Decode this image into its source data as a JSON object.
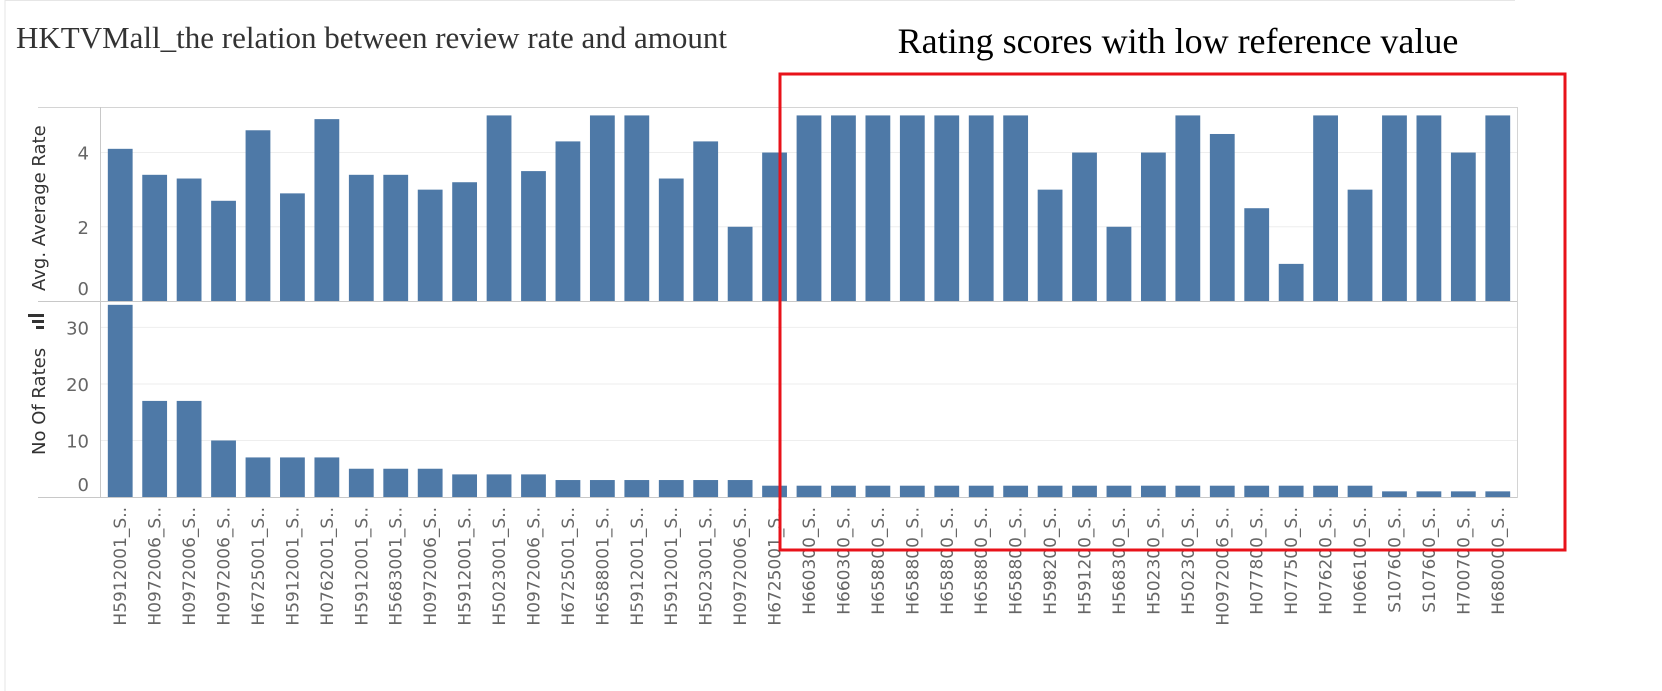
{
  "chart_data": {
    "type": "bar",
    "title": "HKTVMall_the relation between review rate and amount",
    "annotation": "Rating scores with low reference value",
    "categories": [
      "H5912001_S..",
      "H0972006_S..",
      "H0972006_S..",
      "H0972006_S..",
      "H6725001_S..",
      "H5912001_S..",
      "H0762001_S..",
      "H5912001_S..",
      "H5683001_S..",
      "H0972006_S..",
      "H5912001_S..",
      "H5023001_S..",
      "H0972006_S..",
      "H6725001_S..",
      "H6588001_S..",
      "H5912001_S..",
      "H5912001_S..",
      "H5023001_S..",
      "H0972006_S..",
      "H6725001_S..",
      "H660300_S..",
      "H660300_S..",
      "H658800_S..",
      "H658800_S..",
      "H658800_S..",
      "H658800_S..",
      "H658800_S..",
      "H598200_S..",
      "H591200_S..",
      "H568300_S..",
      "H502300_S..",
      "H502300_S..",
      "H0972006_S..",
      "H077800_S..",
      "H077500_S..",
      "H076200_S..",
      "H066100_S..",
      "S107600_S..",
      "S107600_S..",
      "H700700_S..",
      "H680000_S.."
    ],
    "series": [
      {
        "name": "Avg. Average Rate",
        "ylabel": "Avg. Average Rate",
        "ylim": [
          0,
          5.2
        ],
        "yticks": [
          0,
          2,
          4
        ],
        "values": [
          4.1,
          3.4,
          3.3,
          2.7,
          4.6,
          2.9,
          4.9,
          3.4,
          3.4,
          3.0,
          3.2,
          5.0,
          3.5,
          4.3,
          5.0,
          5.0,
          3.3,
          4.3,
          2.0,
          4.0,
          5.0,
          5.0,
          5.0,
          5.0,
          5.0,
          5.0,
          5.0,
          3.0,
          4.0,
          2.0,
          4.0,
          5.0,
          4.5,
          2.5,
          1.0,
          5.0,
          3.0,
          5.0,
          5.0,
          4.0,
          5.0
        ]
      },
      {
        "name": "No Of Rates",
        "ylabel": "No Of Rates",
        "ylim": [
          0,
          34.5
        ],
        "yticks": [
          0,
          10,
          20,
          30
        ],
        "values": [
          34,
          17,
          17,
          10,
          7,
          7,
          7,
          5,
          5,
          5,
          4,
          4,
          4,
          3,
          3,
          3,
          3,
          3,
          3,
          2,
          2,
          2,
          2,
          2,
          2,
          2,
          2,
          2,
          2,
          2,
          2,
          2,
          2,
          2,
          2,
          2,
          2,
          1,
          1,
          1,
          1
        ]
      }
    ],
    "bar_color": "#4e79a7",
    "highlight_color": "#e8121a",
    "grid": true
  }
}
